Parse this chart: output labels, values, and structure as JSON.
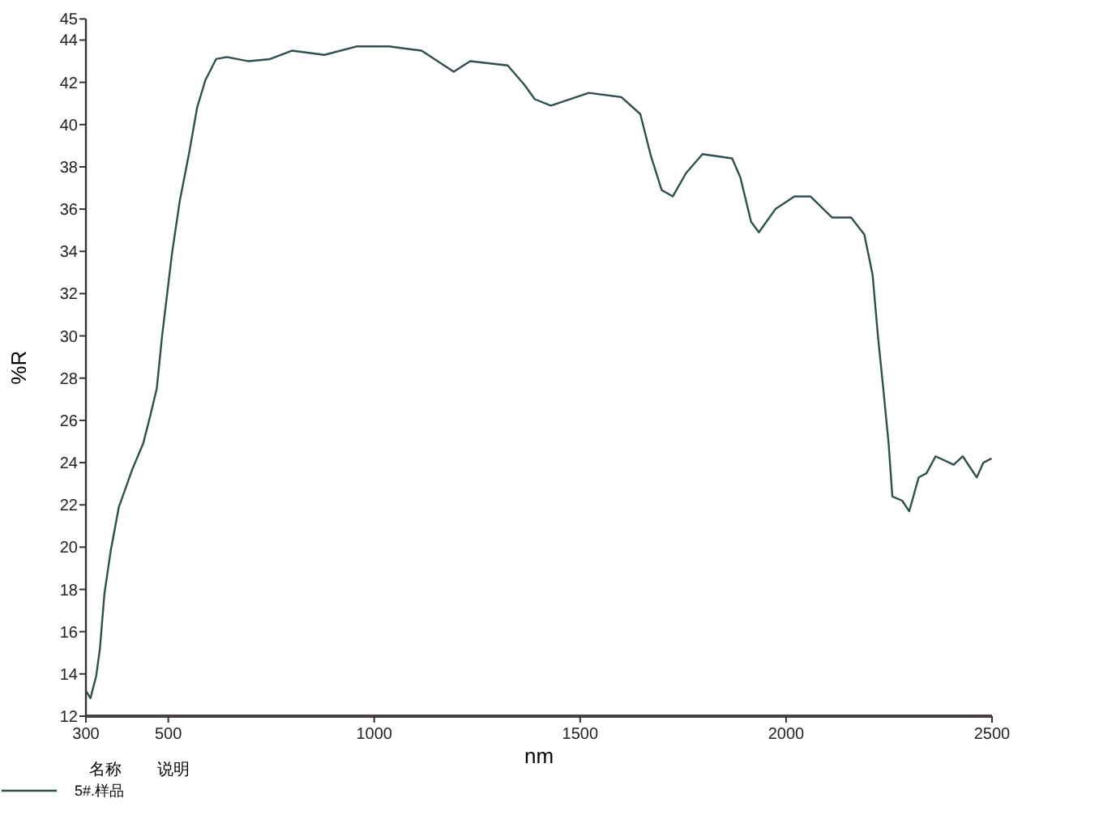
{
  "chart_data": {
    "type": "line",
    "xlabel": "nm",
    "ylabel": "%R",
    "legend_title": "名称",
    "annotations": [
      "说明"
    ],
    "legend": "bottom left",
    "xlim": [
      300,
      2500
    ],
    "ylim": [
      12,
      45
    ],
    "xticks": [
      300,
      500,
      1000,
      1500,
      2000,
      2500
    ],
    "yticks": [
      12,
      14,
      16,
      18,
      20,
      22,
      24,
      26,
      28,
      30,
      32,
      34,
      36,
      38,
      40,
      42,
      44,
      45
    ],
    "x": [
      300,
      311,
      325,
      334,
      345,
      360,
      380,
      413,
      439,
      456,
      472,
      485,
      509,
      528,
      551,
      570,
      590,
      616,
      642,
      695,
      747,
      800,
      879,
      957,
      1036,
      1115,
      1193,
      1233,
      1324,
      1364,
      1390,
      1429,
      1521,
      1600,
      1646,
      1672,
      1698,
      1725,
      1757,
      1797,
      1869,
      1889,
      1915,
      1934,
      1974,
      2020,
      2059,
      2112,
      2158,
      2190,
      2210,
      2223,
      2236,
      2249,
      2258,
      2282,
      2299,
      2322,
      2341,
      2363,
      2407,
      2429,
      2463,
      2479,
      2499
    ],
    "series": [
      {
        "name": "5#.样品",
        "color": "#2f4f4f",
        "values": [
          13.2,
          12.85,
          13.9,
          15.2,
          17.8,
          19.8,
          21.9,
          23.7,
          24.9,
          26.2,
          27.5,
          30.0,
          33.9,
          36.4,
          38.7,
          40.8,
          42.1,
          43.1,
          43.2,
          43.0,
          43.1,
          43.5,
          43.3,
          43.7,
          43.7,
          43.5,
          42.5,
          43.0,
          42.8,
          41.9,
          41.2,
          40.9,
          41.5,
          41.3,
          40.5,
          38.5,
          36.9,
          36.6,
          37.7,
          38.6,
          38.4,
          37.5,
          35.4,
          34.9,
          36.0,
          36.6,
          36.6,
          35.6,
          35.6,
          34.8,
          32.9,
          30.0,
          27.5,
          24.9,
          22.4,
          22.2,
          21.7,
          23.3,
          23.5,
          24.3,
          23.9,
          24.3,
          23.3,
          24.0,
          24.2
        ]
      }
    ]
  }
}
